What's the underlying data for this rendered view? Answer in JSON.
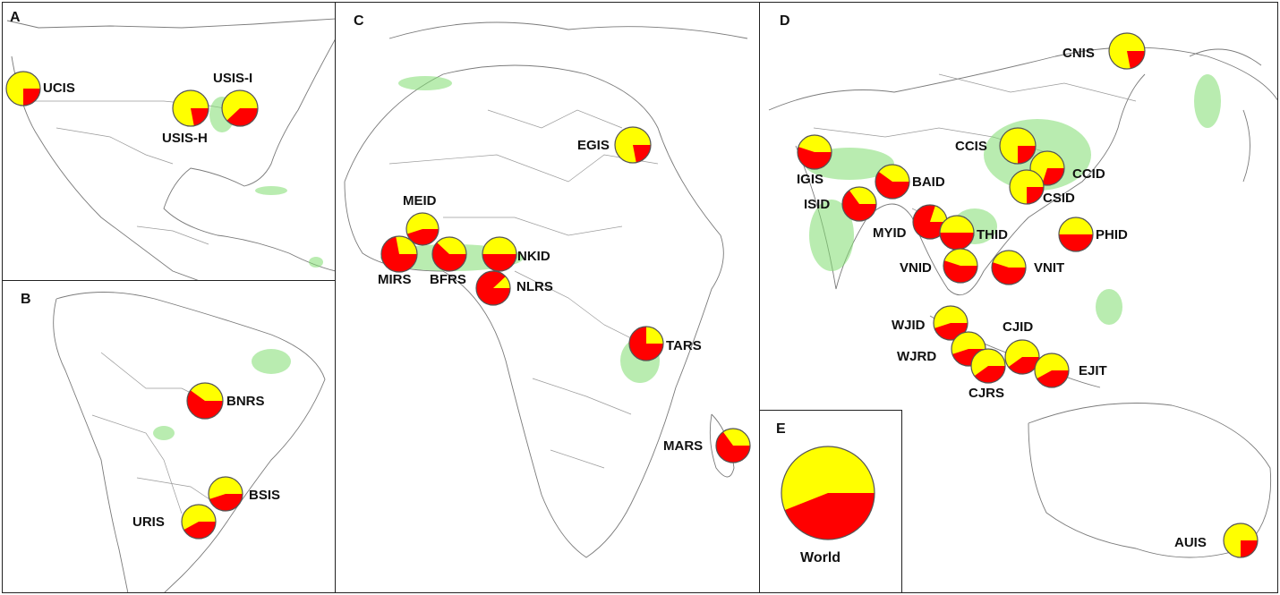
{
  "colors": {
    "yellow": "#ffff00",
    "red": "#ff0000",
    "outline": "#555555",
    "crop": "#7fdc6f"
  },
  "panels": {
    "A": {
      "letter": "A"
    },
    "B": {
      "letter": "B"
    },
    "C": {
      "letter": "C"
    },
    "D": {
      "letter": "D"
    },
    "E": {
      "letter": "E"
    }
  },
  "sites": [
    {
      "id": "UCIS",
      "label": "UCIS",
      "red_fraction": 0.25
    },
    {
      "id": "USIS-I",
      "label": "USIS-I",
      "red_fraction": 0.38
    },
    {
      "id": "USIS-H",
      "label": "USIS-H",
      "red_fraction": 0.22
    },
    {
      "id": "BNRS",
      "label": "BNRS",
      "red_fraction": 0.6
    },
    {
      "id": "BSIS",
      "label": "BSIS",
      "red_fraction": 0.45
    },
    {
      "id": "URIS",
      "label": "URIS",
      "red_fraction": 0.42
    },
    {
      "id": "MEID",
      "label": "MEID",
      "red_fraction": 0.45
    },
    {
      "id": "MIRS",
      "label": "MIRS",
      "red_fraction": 0.72
    },
    {
      "id": "BFRS",
      "label": "BFRS",
      "red_fraction": 0.62
    },
    {
      "id": "NKID",
      "label": "NKID",
      "red_fraction": 0.5
    },
    {
      "id": "NLRS",
      "label": "NLRS",
      "red_fraction": 0.88
    },
    {
      "id": "EGIS",
      "label": "EGIS",
      "red_fraction": 0.22
    },
    {
      "id": "TARS",
      "label": "TARS",
      "red_fraction": 0.75
    },
    {
      "id": "MARS",
      "label": "MARS",
      "red_fraction": 0.65
    },
    {
      "id": "CNIS",
      "label": "CNIS",
      "red_fraction": 0.22
    },
    {
      "id": "IGIS",
      "label": "IGIS",
      "red_fraction": 0.55
    },
    {
      "id": "CCIS",
      "label": "CCIS",
      "red_fraction": 0.25
    },
    {
      "id": "BAID",
      "label": "BAID",
      "red_fraction": 0.6
    },
    {
      "id": "CCID",
      "label": "CCID",
      "red_fraction": 0.3
    },
    {
      "id": "ISID",
      "label": "ISID",
      "red_fraction": 0.65
    },
    {
      "id": "CSID",
      "label": "CSID",
      "red_fraction": 0.25
    },
    {
      "id": "MYID",
      "label": "MYID",
      "red_fraction": 0.8
    },
    {
      "id": "THID",
      "label": "THID",
      "red_fraction": 0.5
    },
    {
      "id": "PHID",
      "label": "PHID",
      "red_fraction": 0.5
    },
    {
      "id": "VNID",
      "label": "VNID",
      "red_fraction": 0.55
    },
    {
      "id": "VNIT",
      "label": "VNIT",
      "red_fraction": 0.55
    },
    {
      "id": "WJID",
      "label": "WJID",
      "red_fraction": 0.45
    },
    {
      "id": "CJID",
      "label": "CJID",
      "red_fraction": 0.4
    },
    {
      "id": "WJRD",
      "label": "WJRD",
      "red_fraction": 0.45
    },
    {
      "id": "EJIT",
      "label": "EJIT",
      "red_fraction": 0.42
    },
    {
      "id": "CJRS",
      "label": "CJRS",
      "red_fraction": 0.4
    },
    {
      "id": "AUIS",
      "label": "AUIS",
      "red_fraction": 0.25
    },
    {
      "id": "World",
      "label": "World",
      "red_fraction": 0.44
    }
  ]
}
